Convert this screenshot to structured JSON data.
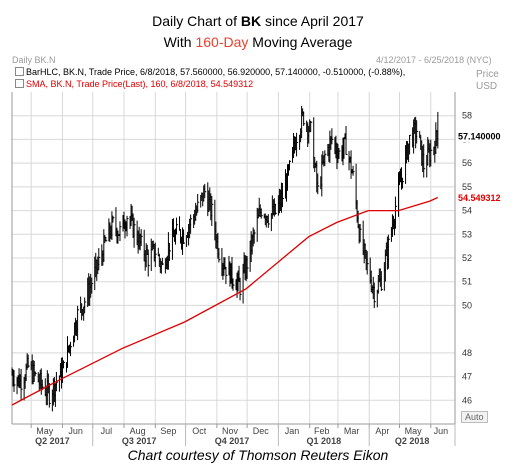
{
  "title": {
    "line1_pre": "Daily Chart of ",
    "line1_ticker": "BK",
    "line1_post": " since April 2017",
    "line2_pre": "With ",
    "line2_highlight": "160-Day",
    "line2_post": " Moving Average"
  },
  "header": {
    "left": "Daily BK.N",
    "right": "4/12/2017 - 6/25/2018 (NYC)",
    "price_label": "Price",
    "price_unit": "USD"
  },
  "legend": {
    "bar": "BarHLC, BK.N, Trade Price, 6/8/2018, 57.560000, 56.920000, 57.140000, -0.510000, (-0.88%),",
    "sma": "SMA, BK.N, Trade Price(Last), 160, 6/8/2018, 54.549312"
  },
  "last_price_label": "57.140000",
  "sma_label": "54.549312",
  "caption": "Chart courtesy of Thomson Reuters Eikon",
  "auto_button": "Auto",
  "colors": {
    "price_bars": "#000000",
    "sma_line": "#e00000",
    "grid": "#d8d8d8",
    "highlight": "#e8412c"
  },
  "chart_data": {
    "type": "line",
    "ylim": [
      45,
      59
    ],
    "yticks": [
      46,
      47,
      48,
      50,
      51,
      52,
      53,
      54,
      55,
      56,
      57,
      58
    ],
    "month_labels": [
      "May",
      "Jun",
      "Jul",
      "Aug",
      "Sep",
      "Oct",
      "Nov",
      "Dec",
      "Jan",
      "Feb",
      "Mar",
      "Apr",
      "May",
      "Jun"
    ],
    "quarter_labels": [
      "Q2 2017",
      "Q3 2017",
      "Q4 2017",
      "Q1 2018",
      "Q2 2018"
    ],
    "x_range": [
      "2017-04-12",
      "2018-06-25"
    ],
    "series": [
      {
        "name": "BK.N",
        "style": "HLC bars",
        "points": [
          {
            "date": "2017-04-12",
            "close": 47.1
          },
          {
            "date": "2017-04-20",
            "close": 46.8
          },
          {
            "date": "2017-04-28",
            "close": 47.4
          },
          {
            "date": "2017-05-05",
            "close": 47.0
          },
          {
            "date": "2017-05-12",
            "close": 46.6
          },
          {
            "date": "2017-05-19",
            "close": 46.3
          },
          {
            "date": "2017-05-26",
            "close": 46.8
          },
          {
            "date": "2017-06-02",
            "close": 47.3
          },
          {
            "date": "2017-06-09",
            "close": 48.5
          },
          {
            "date": "2017-06-16",
            "close": 49.6
          },
          {
            "date": "2017-06-23",
            "close": 50.2
          },
          {
            "date": "2017-06-30",
            "close": 51.0
          },
          {
            "date": "2017-07-07",
            "close": 51.8
          },
          {
            "date": "2017-07-14",
            "close": 52.7
          },
          {
            "date": "2017-07-21",
            "close": 53.4
          },
          {
            "date": "2017-07-28",
            "close": 53.1
          },
          {
            "date": "2017-08-04",
            "close": 53.8
          },
          {
            "date": "2017-08-11",
            "close": 53.2
          },
          {
            "date": "2017-08-18",
            "close": 52.5
          },
          {
            "date": "2017-08-25",
            "close": 52.0
          },
          {
            "date": "2017-09-01",
            "close": 52.3
          },
          {
            "date": "2017-09-08",
            "close": 51.6
          },
          {
            "date": "2017-09-15",
            "close": 52.6
          },
          {
            "date": "2017-09-22",
            "close": 53.0
          },
          {
            "date": "2017-09-29",
            "close": 53.0
          },
          {
            "date": "2017-10-06",
            "close": 53.5
          },
          {
            "date": "2017-10-13",
            "close": 54.1
          },
          {
            "date": "2017-10-20",
            "close": 54.8
          },
          {
            "date": "2017-10-27",
            "close": 53.9
          },
          {
            "date": "2017-11-03",
            "close": 52.3
          },
          {
            "date": "2017-11-10",
            "close": 51.6
          },
          {
            "date": "2017-11-17",
            "close": 51.2
          },
          {
            "date": "2017-11-24",
            "close": 50.8
          },
          {
            "date": "2017-12-01",
            "close": 51.8
          },
          {
            "date": "2017-12-08",
            "close": 53.0
          },
          {
            "date": "2017-12-15",
            "close": 54.1
          },
          {
            "date": "2017-12-22",
            "close": 53.8
          },
          {
            "date": "2017-12-29",
            "close": 53.9
          },
          {
            "date": "2018-01-05",
            "close": 54.6
          },
          {
            "date": "2018-01-12",
            "close": 55.7
          },
          {
            "date": "2018-01-19",
            "close": 57.2
          },
          {
            "date": "2018-01-26",
            "close": 58.0
          },
          {
            "date": "2018-02-02",
            "close": 57.3
          },
          {
            "date": "2018-02-09",
            "close": 54.8
          },
          {
            "date": "2018-02-16",
            "close": 56.3
          },
          {
            "date": "2018-02-23",
            "close": 57.0
          },
          {
            "date": "2018-03-02",
            "close": 56.4
          },
          {
            "date": "2018-03-09",
            "close": 56.8
          },
          {
            "date": "2018-03-16",
            "close": 55.4
          },
          {
            "date": "2018-03-23",
            "close": 52.8
          },
          {
            "date": "2018-03-30",
            "close": 51.6
          },
          {
            "date": "2018-04-06",
            "close": 50.6
          },
          {
            "date": "2018-04-13",
            "close": 51.1
          },
          {
            "date": "2018-04-20",
            "close": 52.5
          },
          {
            "date": "2018-04-27",
            "close": 54.2
          },
          {
            "date": "2018-05-04",
            "close": 55.6
          },
          {
            "date": "2018-05-11",
            "close": 57.0
          },
          {
            "date": "2018-05-18",
            "close": 57.4
          },
          {
            "date": "2018-05-25",
            "close": 55.9
          },
          {
            "date": "2018-06-01",
            "close": 56.5
          },
          {
            "date": "2018-06-08",
            "close": 57.14
          }
        ]
      },
      {
        "name": "SMA 160",
        "style": "line",
        "points": [
          {
            "date": "2017-04-12",
            "value": 45.8
          },
          {
            "date": "2017-05-31",
            "value": 46.9
          },
          {
            "date": "2017-07-31",
            "value": 48.2
          },
          {
            "date": "2017-09-30",
            "value": 49.3
          },
          {
            "date": "2017-11-30",
            "value": 50.7
          },
          {
            "date": "2017-12-31",
            "value": 51.8
          },
          {
            "date": "2018-01-31",
            "value": 52.9
          },
          {
            "date": "2018-02-28",
            "value": 53.5
          },
          {
            "date": "2018-03-31",
            "value": 54.0
          },
          {
            "date": "2018-04-30",
            "value": 54.0
          },
          {
            "date": "2018-05-31",
            "value": 54.4
          },
          {
            "date": "2018-06-08",
            "value": 54.55
          }
        ]
      }
    ]
  }
}
